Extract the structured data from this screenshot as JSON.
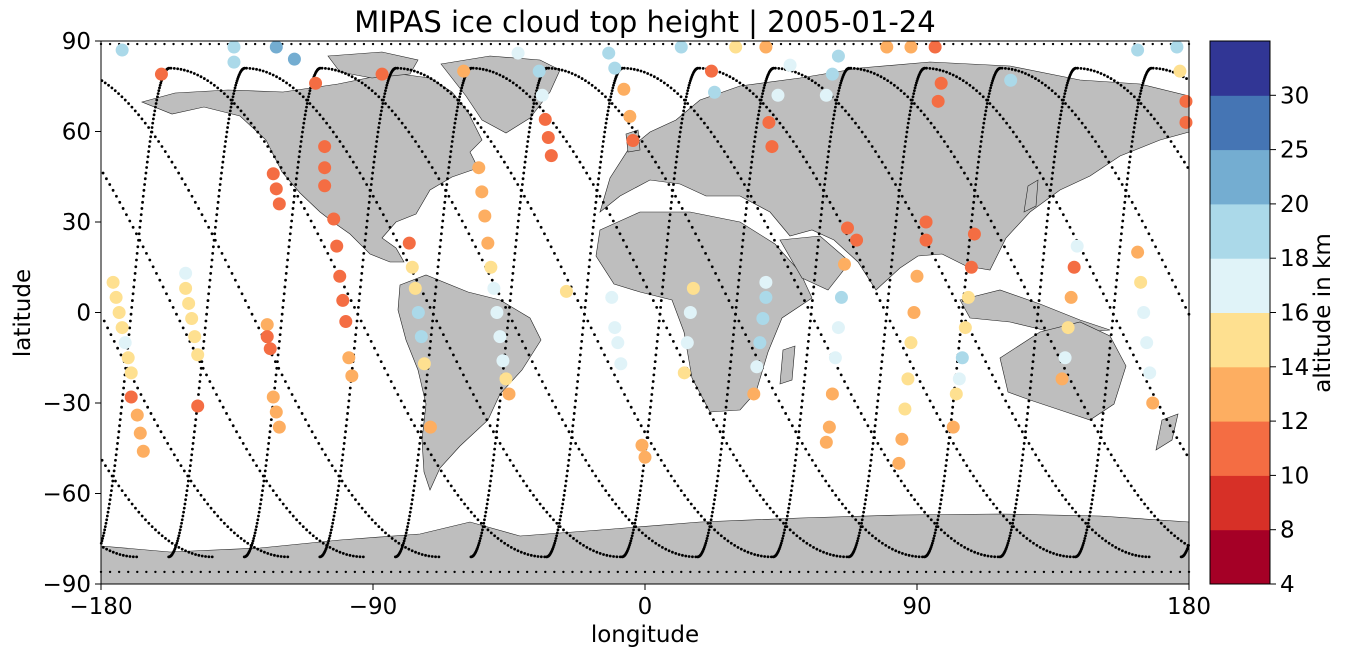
{
  "chart_data": {
    "type": "scatter",
    "title": "MIPAS ice cloud top height | 2005-01-24",
    "xlabel": "longitude",
    "ylabel": "latitude",
    "xlim": [
      -180,
      180
    ],
    "ylim": [
      -90,
      90
    ],
    "xticks": [
      -180,
      -90,
      0,
      90,
      180
    ],
    "yticks": [
      -90,
      -60,
      -30,
      0,
      30,
      60,
      90
    ],
    "xtick_labels": [
      "−180",
      "−90",
      "0",
      "90",
      "180"
    ],
    "ytick_labels": [
      "−90",
      "−60",
      "−30",
      "0",
      "30",
      "60",
      "90"
    ],
    "colorbar": {
      "label": "altitude in km",
      "bounds": [
        4,
        8,
        10,
        12,
        14,
        16,
        18,
        20,
        25,
        30
      ],
      "tick_labels": [
        "4",
        "8",
        "10",
        "12",
        "14",
        "16",
        "18",
        "20",
        "25",
        "30"
      ],
      "colors": [
        "#a50026",
        "#d73027",
        "#f46d43",
        "#fdae61",
        "#fee090",
        "#e0f3f8",
        "#abd9e9",
        "#74add1",
        "#4575b4",
        "#313695"
      ]
    },
    "land_color": "#bebebe",
    "orbit_track_color": "#000000",
    "clouds": [
      {
        "lon": -176,
        "lat": 10,
        "alt": 15
      },
      {
        "lon": -175,
        "lat": 5,
        "alt": 15
      },
      {
        "lon": -174,
        "lat": 0,
        "alt": 15
      },
      {
        "lon": -173,
        "lat": -5,
        "alt": 15
      },
      {
        "lon": -172,
        "lat": -10,
        "alt": 17
      },
      {
        "lon": -171,
        "lat": -15,
        "alt": 15
      },
      {
        "lon": -170,
        "lat": -20,
        "alt": 15
      },
      {
        "lon": -170,
        "lat": -28,
        "alt": 11
      },
      {
        "lon": -168,
        "lat": -34,
        "alt": 13
      },
      {
        "lon": -167,
        "lat": -40,
        "alt": 13
      },
      {
        "lon": -166,
        "lat": -46,
        "alt": 13
      },
      {
        "lon": -173,
        "lat": 87,
        "alt": 19
      },
      {
        "lon": -160,
        "lat": 79,
        "alt": 11
      },
      {
        "lon": -152,
        "lat": 13,
        "alt": 17
      },
      {
        "lon": -152,
        "lat": 8,
        "alt": 15
      },
      {
        "lon": -151,
        "lat": 3,
        "alt": 15
      },
      {
        "lon": -150,
        "lat": -2,
        "alt": 15
      },
      {
        "lon": -149,
        "lat": -8,
        "alt": 15
      },
      {
        "lon": -148,
        "lat": -14,
        "alt": 15
      },
      {
        "lon": -148,
        "lat": -31,
        "alt": 11
      },
      {
        "lon": -136,
        "lat": 88,
        "alt": 19
      },
      {
        "lon": -136,
        "lat": 83,
        "alt": 19
      },
      {
        "lon": -122,
        "lat": 88,
        "alt": 21
      },
      {
        "lon": -116,
        "lat": 84,
        "alt": 21
      },
      {
        "lon": -123,
        "lat": 46,
        "alt": 11
      },
      {
        "lon": -122,
        "lat": 41,
        "alt": 11
      },
      {
        "lon": -121,
        "lat": 36,
        "alt": 11
      },
      {
        "lon": -125,
        "lat": -4,
        "alt": 13
      },
      {
        "lon": -125,
        "lat": -8,
        "alt": 11
      },
      {
        "lon": -124,
        "lat": -12,
        "alt": 11
      },
      {
        "lon": -123,
        "lat": -28,
        "alt": 13
      },
      {
        "lon": -122,
        "lat": -33,
        "alt": 13
      },
      {
        "lon": -121,
        "lat": -38,
        "alt": 13
      },
      {
        "lon": -109,
        "lat": 76,
        "alt": 11
      },
      {
        "lon": -106,
        "lat": 55,
        "alt": 11
      },
      {
        "lon": -106,
        "lat": 48,
        "alt": 11
      },
      {
        "lon": -106,
        "lat": 42,
        "alt": 11
      },
      {
        "lon": -103,
        "lat": 31,
        "alt": 11
      },
      {
        "lon": -102,
        "lat": 22,
        "alt": 11
      },
      {
        "lon": -101,
        "lat": 12,
        "alt": 11
      },
      {
        "lon": -100,
        "lat": 4,
        "alt": 11
      },
      {
        "lon": -99,
        "lat": -3,
        "alt": 11
      },
      {
        "lon": -98,
        "lat": -15,
        "alt": 13
      },
      {
        "lon": -97,
        "lat": -21,
        "alt": 13
      },
      {
        "lon": -87,
        "lat": 79,
        "alt": 11
      },
      {
        "lon": -78,
        "lat": 23,
        "alt": 11
      },
      {
        "lon": -77,
        "lat": 15,
        "alt": 15
      },
      {
        "lon": -76,
        "lat": 8,
        "alt": 15
      },
      {
        "lon": -75,
        "lat": 0,
        "alt": 19
      },
      {
        "lon": -74,
        "lat": -8,
        "alt": 19
      },
      {
        "lon": -73,
        "lat": -17,
        "alt": 15
      },
      {
        "lon": -71,
        "lat": -38,
        "alt": 13
      },
      {
        "lon": -60,
        "lat": 80,
        "alt": 13
      },
      {
        "lon": -55,
        "lat": 48,
        "alt": 13
      },
      {
        "lon": -54,
        "lat": 40,
        "alt": 13
      },
      {
        "lon": -53,
        "lat": 32,
        "alt": 13
      },
      {
        "lon": -52,
        "lat": 23,
        "alt": 13
      },
      {
        "lon": -51,
        "lat": 15,
        "alt": 15
      },
      {
        "lon": -50,
        "lat": 8,
        "alt": 17
      },
      {
        "lon": -49,
        "lat": 0,
        "alt": 17
      },
      {
        "lon": -48,
        "lat": -8,
        "alt": 17
      },
      {
        "lon": -47,
        "lat": -16,
        "alt": 17
      },
      {
        "lon": -46,
        "lat": -22,
        "alt": 15
      },
      {
        "lon": -45,
        "lat": -27,
        "alt": 13
      },
      {
        "lon": -42,
        "lat": 86,
        "alt": 17
      },
      {
        "lon": -35,
        "lat": 80,
        "alt": 19
      },
      {
        "lon": -34,
        "lat": 72,
        "alt": 17
      },
      {
        "lon": -33,
        "lat": 64,
        "alt": 11
      },
      {
        "lon": -32,
        "lat": 58,
        "alt": 11
      },
      {
        "lon": -31,
        "lat": 52,
        "alt": 11
      },
      {
        "lon": -26,
        "lat": 7,
        "alt": 15
      },
      {
        "lon": -12,
        "lat": 86,
        "alt": 19
      },
      {
        "lon": -10,
        "lat": 81,
        "alt": 19
      },
      {
        "lon": -7,
        "lat": 74,
        "alt": 13
      },
      {
        "lon": -5,
        "lat": 65,
        "alt": 13
      },
      {
        "lon": -4,
        "lat": 57,
        "alt": 11
      },
      {
        "lon": -11,
        "lat": 5,
        "alt": 17
      },
      {
        "lon": -10,
        "lat": -5,
        "alt": 17
      },
      {
        "lon": -9,
        "lat": -10,
        "alt": 17
      },
      {
        "lon": -8,
        "lat": -17,
        "alt": 17
      },
      {
        "lon": -1,
        "lat": -44,
        "alt": 13
      },
      {
        "lon": 0,
        "lat": -48,
        "alt": 13
      },
      {
        "lon": 12,
        "lat": 88,
        "alt": 19
      },
      {
        "lon": 22,
        "lat": 80,
        "alt": 11
      },
      {
        "lon": 23,
        "lat": 73,
        "alt": 19
      },
      {
        "lon": 16,
        "lat": 8,
        "alt": 15
      },
      {
        "lon": 15,
        "lat": 0,
        "alt": 17
      },
      {
        "lon": 14,
        "lat": -10,
        "alt": 17
      },
      {
        "lon": 13,
        "lat": -20,
        "alt": 15
      },
      {
        "lon": 30,
        "lat": 88,
        "alt": 15
      },
      {
        "lon": 40,
        "lat": 88,
        "alt": 13
      },
      {
        "lon": 48,
        "lat": 82,
        "alt": 17
      },
      {
        "lon": 44,
        "lat": 72,
        "alt": 17
      },
      {
        "lon": 41,
        "lat": 63,
        "alt": 11
      },
      {
        "lon": 42,
        "lat": 55,
        "alt": 11
      },
      {
        "lon": 40,
        "lat": 10,
        "alt": 17
      },
      {
        "lon": 40,
        "lat": 5,
        "alt": 19
      },
      {
        "lon": 39,
        "lat": -2,
        "alt": 19
      },
      {
        "lon": 38,
        "lat": -10,
        "alt": 19
      },
      {
        "lon": 37,
        "lat": -18,
        "alt": 17
      },
      {
        "lon": 36,
        "lat": -27,
        "alt": 13
      },
      {
        "lon": 64,
        "lat": 85,
        "alt": 19
      },
      {
        "lon": 62,
        "lat": 79,
        "alt": 19
      },
      {
        "lon": 60,
        "lat": 72,
        "alt": 17
      },
      {
        "lon": 67,
        "lat": 28,
        "alt": 11
      },
      {
        "lon": 66,
        "lat": 16,
        "alt": 13
      },
      {
        "lon": 65,
        "lat": 5,
        "alt": 19
      },
      {
        "lon": 64,
        "lat": -5,
        "alt": 17
      },
      {
        "lon": 63,
        "lat": -15,
        "alt": 17
      },
      {
        "lon": 62,
        "lat": -27,
        "alt": 13
      },
      {
        "lon": 61,
        "lat": -38,
        "alt": 13
      },
      {
        "lon": 60,
        "lat": -43,
        "alt": 13
      },
      {
        "lon": 70,
        "lat": 24,
        "alt": 11
      },
      {
        "lon": 80,
        "lat": 88,
        "alt": 13
      },
      {
        "lon": 88,
        "lat": 88,
        "alt": 13
      },
      {
        "lon": 93,
        "lat": 30,
        "alt": 11
      },
      {
        "lon": 93,
        "lat": 24,
        "alt": 11
      },
      {
        "lon": 90,
        "lat": 12,
        "alt": 13
      },
      {
        "lon": 89,
        "lat": 0,
        "alt": 13
      },
      {
        "lon": 88,
        "lat": -10,
        "alt": 15
      },
      {
        "lon": 87,
        "lat": -22,
        "alt": 15
      },
      {
        "lon": 86,
        "lat": -32,
        "alt": 15
      },
      {
        "lon": 85,
        "lat": -42,
        "alt": 13
      },
      {
        "lon": 84,
        "lat": -50,
        "alt": 13
      },
      {
        "lon": 98,
        "lat": 76,
        "alt": 11
      },
      {
        "lon": 97,
        "lat": 70,
        "alt": 11
      },
      {
        "lon": 96,
        "lat": 88,
        "alt": 11
      },
      {
        "lon": 109,
        "lat": 26,
        "alt": 11
      },
      {
        "lon": 108,
        "lat": 15,
        "alt": 11
      },
      {
        "lon": 107,
        "lat": 5,
        "alt": 15
      },
      {
        "lon": 106,
        "lat": -5,
        "alt": 15
      },
      {
        "lon": 105,
        "lat": -15,
        "alt": 19
      },
      {
        "lon": 104,
        "lat": -22,
        "alt": 17
      },
      {
        "lon": 103,
        "lat": -27,
        "alt": 15
      },
      {
        "lon": 102,
        "lat": -38,
        "alt": 13
      },
      {
        "lon": 121,
        "lat": 77,
        "alt": 19
      },
      {
        "lon": 143,
        "lat": 22,
        "alt": 17
      },
      {
        "lon": 142,
        "lat": 15,
        "alt": 11
      },
      {
        "lon": 141,
        "lat": 5,
        "alt": 13
      },
      {
        "lon": 140,
        "lat": -5,
        "alt": 15
      },
      {
        "lon": 139,
        "lat": -15,
        "alt": 17
      },
      {
        "lon": 138,
        "lat": -22,
        "alt": 13
      },
      {
        "lon": 163,
        "lat": 87,
        "alt": 19
      },
      {
        "lon": 163,
        "lat": 20,
        "alt": 13
      },
      {
        "lon": 164,
        "lat": 10,
        "alt": 15
      },
      {
        "lon": 165,
        "lat": 0,
        "alt": 17
      },
      {
        "lon": 166,
        "lat": -10,
        "alt": 17
      },
      {
        "lon": 167,
        "lat": -20,
        "alt": 17
      },
      {
        "lon": 168,
        "lat": -30,
        "alt": 13
      },
      {
        "lon": 176,
        "lat": 88,
        "alt": 19
      },
      {
        "lon": 177,
        "lat": 80,
        "alt": 15
      },
      {
        "lon": 179,
        "lat": 70,
        "alt": 11
      },
      {
        "lon": 179,
        "lat": 63,
        "alt": 11
      }
    ]
  }
}
